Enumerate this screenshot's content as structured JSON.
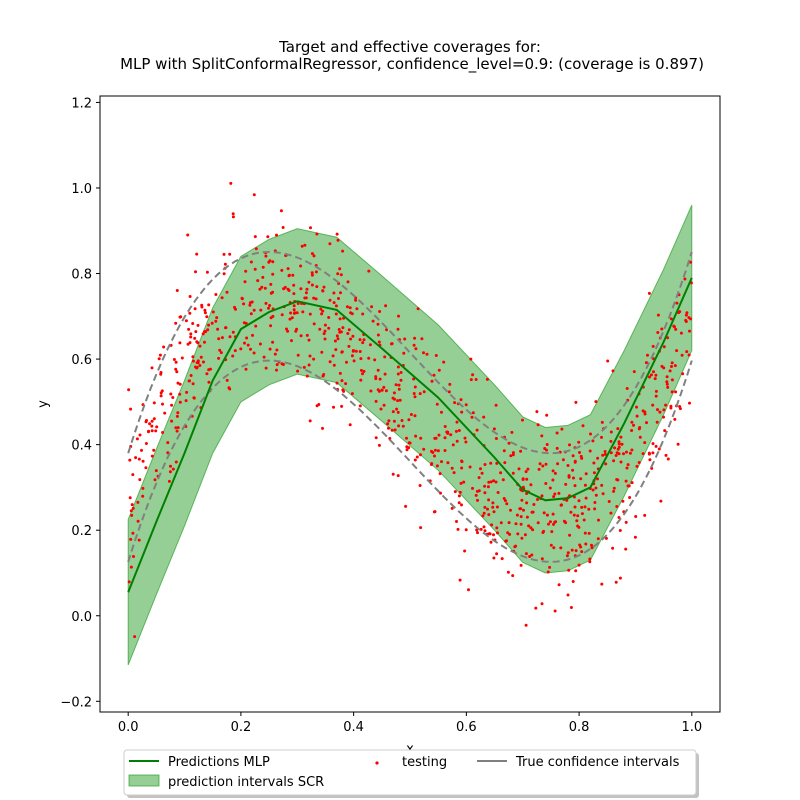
{
  "chart_data": {
    "type": "line",
    "title": [
      "Target and effective coverages for:",
      "MLP with SplitConformalRegressor, confidence_level=0.9: (coverage is 0.897)"
    ],
    "xlabel": "x",
    "ylabel": "y",
    "xlim": [
      -0.05,
      1.05
    ],
    "ylim": [
      -0.225,
      1.215
    ],
    "xticks": [
      0.0,
      0.2,
      0.4,
      0.6,
      0.8,
      1.0
    ],
    "xtick_labels": [
      "0.0",
      "0.2",
      "0.4",
      "0.6",
      "0.8",
      "1.0"
    ],
    "yticks": [
      -0.2,
      0.0,
      0.2,
      0.4,
      0.6,
      0.8,
      1.0,
      1.2
    ],
    "ytick_labels": [
      "−0.2",
      "0.0",
      "0.2",
      "0.4",
      "0.6",
      "0.8",
      "1.0",
      "1.2"
    ],
    "grid": false,
    "legend_placement": "bottom-center",
    "series": [
      {
        "name": "Predictions MLP",
        "kind": "line",
        "color": "#008000",
        "x": [
          0.0,
          0.05,
          0.1,
          0.15,
          0.2,
          0.25,
          0.3,
          0.37,
          0.45,
          0.55,
          0.65,
          0.7,
          0.74,
          0.78,
          0.82,
          0.88,
          0.95,
          1.0
        ],
        "y": [
          0.055,
          0.22,
          0.38,
          0.55,
          0.67,
          0.71,
          0.735,
          0.715,
          0.625,
          0.51,
          0.37,
          0.295,
          0.27,
          0.275,
          0.3,
          0.45,
          0.64,
          0.79
        ]
      },
      {
        "name": "prediction intervals SCR",
        "kind": "band",
        "color": "#2ca02c",
        "x": [
          0.0,
          0.05,
          0.1,
          0.15,
          0.2,
          0.25,
          0.3,
          0.37,
          0.45,
          0.55,
          0.65,
          0.7,
          0.74,
          0.78,
          0.82,
          0.88,
          0.95,
          1.0
        ],
        "lower": [
          -0.115,
          0.05,
          0.21,
          0.38,
          0.5,
          0.54,
          0.565,
          0.545,
          0.455,
          0.34,
          0.2,
          0.125,
          0.1,
          0.105,
          0.13,
          0.28,
          0.47,
          0.62
        ],
        "upper": [
          0.225,
          0.39,
          0.55,
          0.72,
          0.84,
          0.88,
          0.905,
          0.885,
          0.795,
          0.68,
          0.54,
          0.465,
          0.44,
          0.445,
          0.47,
          0.62,
          0.81,
          0.96
        ]
      },
      {
        "name": "testing",
        "kind": "scatter",
        "color": "#ff0000",
        "n_points": 1000,
        "noise_std": 0.1
      },
      {
        "name": "True confidence intervals",
        "kind": "dashed_band",
        "color": "#808080",
        "offset": 0.127
      }
    ]
  }
}
